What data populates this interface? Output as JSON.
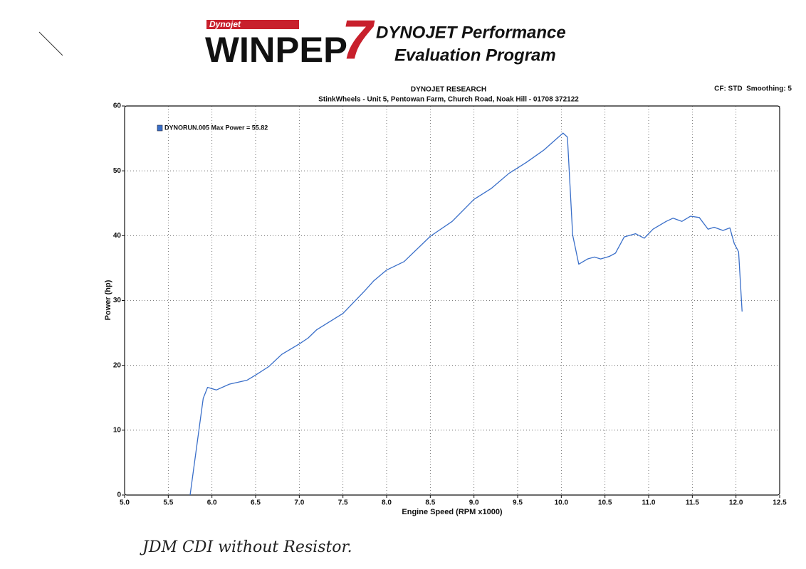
{
  "header": {
    "brand": "Dynojet",
    "product": "WINPEP",
    "version": "7",
    "line1": "DYNOJET Performance",
    "line2": "Evaluation Program"
  },
  "chart_data": {
    "type": "line",
    "title": "DYNOJET RESEARCH",
    "subtitle": "StinkWheels - Unit 5, Pentowan Farm, Church Road, Noak Hill - 01708 372122",
    "corner_note": "CF: STD  Smoothing: 5",
    "xlabel": "Engine Speed (RPM x1000)",
    "ylabel": "Power (hp)",
    "annotation": "JDM CDI without Resistor.",
    "x": [
      5.75,
      5.9,
      5.95,
      6.05,
      6.2,
      6.4,
      6.5,
      6.65,
      6.8,
      7.0,
      7.1,
      7.2,
      7.5,
      7.75,
      7.85,
      8.0,
      8.2,
      8.5,
      8.75,
      9.0,
      9.2,
      9.4,
      9.6,
      9.8,
      9.95,
      10.02,
      10.07,
      10.13,
      10.2,
      10.3,
      10.38,
      10.45,
      10.55,
      10.62,
      10.72,
      10.85,
      10.95,
      11.05,
      11.2,
      11.28,
      11.38,
      11.48,
      11.58,
      11.68,
      11.75,
      11.85,
      11.93,
      11.98,
      12.03,
      12.07
    ],
    "series": [
      {
        "name": "DYNORUN.005 Max Power = 55.82",
        "color": "#3a6fc9",
        "values": [
          0,
          14.9,
          16.6,
          16.2,
          17.1,
          17.7,
          18.5,
          19.8,
          21.7,
          23.3,
          24.2,
          25.5,
          28.0,
          31.5,
          33.0,
          34.7,
          36.0,
          39.9,
          42.2,
          45.6,
          47.3,
          49.6,
          51.3,
          53.2,
          55.0,
          55.82,
          55.2,
          40.1,
          35.6,
          36.4,
          36.7,
          36.4,
          36.8,
          37.3,
          39.8,
          40.3,
          39.6,
          41.0,
          42.2,
          42.7,
          42.2,
          43.0,
          42.8,
          41.0,
          41.3,
          40.8,
          41.2,
          38.8,
          37.5,
          28.3
        ]
      }
    ],
    "xlim": [
      5,
      12.5
    ],
    "xticks": [
      {
        "value": 5,
        "label": "5.0"
      },
      5.5,
      {
        "value": 6,
        "label": "6.0"
      },
      6.5,
      {
        "value": 7,
        "label": "7.0"
      },
      7.5,
      {
        "value": 8,
        "label": "8.0"
      },
      8.5,
      {
        "value": 9,
        "label": "9.0"
      },
      9.5,
      {
        "value": 10,
        "label": "10.0"
      },
      10.5,
      {
        "value": 11,
        "label": "11.0"
      },
      11.5,
      {
        "value": 12,
        "label": "12.0"
      },
      12.5
    ],
    "ylim": [
      0,
      60
    ],
    "yticks": [
      0,
      10,
      20,
      30,
      40,
      50,
      60
    ],
    "grid": true
  }
}
